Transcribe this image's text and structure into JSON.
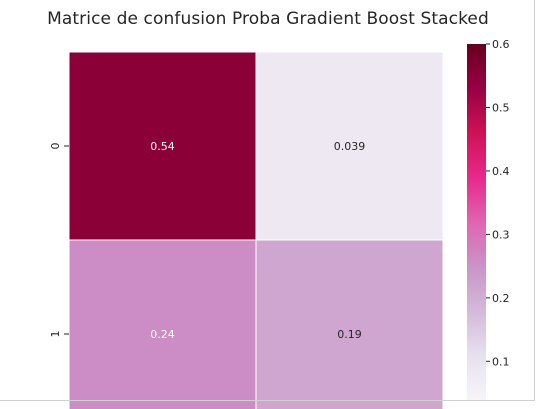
{
  "chart_data": {
    "type": "heatmap",
    "title": "Matrice de confusion Proba Gradient Boost Stacked",
    "row_labels": [
      "0",
      "1"
    ],
    "matrix": [
      [
        0.54,
        0.039
      ],
      [
        0.24,
        0.19
      ]
    ],
    "cell_labels": [
      [
        "0.54",
        "0.039"
      ],
      [
        "0.24",
        "0.19"
      ]
    ],
    "colorbar": {
      "ticks": [
        "0.6",
        "0.5",
        "0.4",
        "0.3",
        "0.2",
        "0.1"
      ],
      "tick_values": [
        0.6,
        0.5,
        0.4,
        0.3,
        0.2,
        0.1
      ],
      "range": [
        0.039,
        0.6
      ]
    },
    "colors": {
      "0.54": "#8c0038",
      "0.039": "#eee8f2",
      "0.24": "#cc8cc5",
      "0.19": "#cfa6d0",
      "colormap": [
        "#f7f4f9",
        "#e7e1ef",
        "#d4b9da",
        "#c994c7",
        "#df65b0",
        "#e7298a",
        "#ce1256",
        "#980043",
        "#67001f"
      ]
    }
  }
}
